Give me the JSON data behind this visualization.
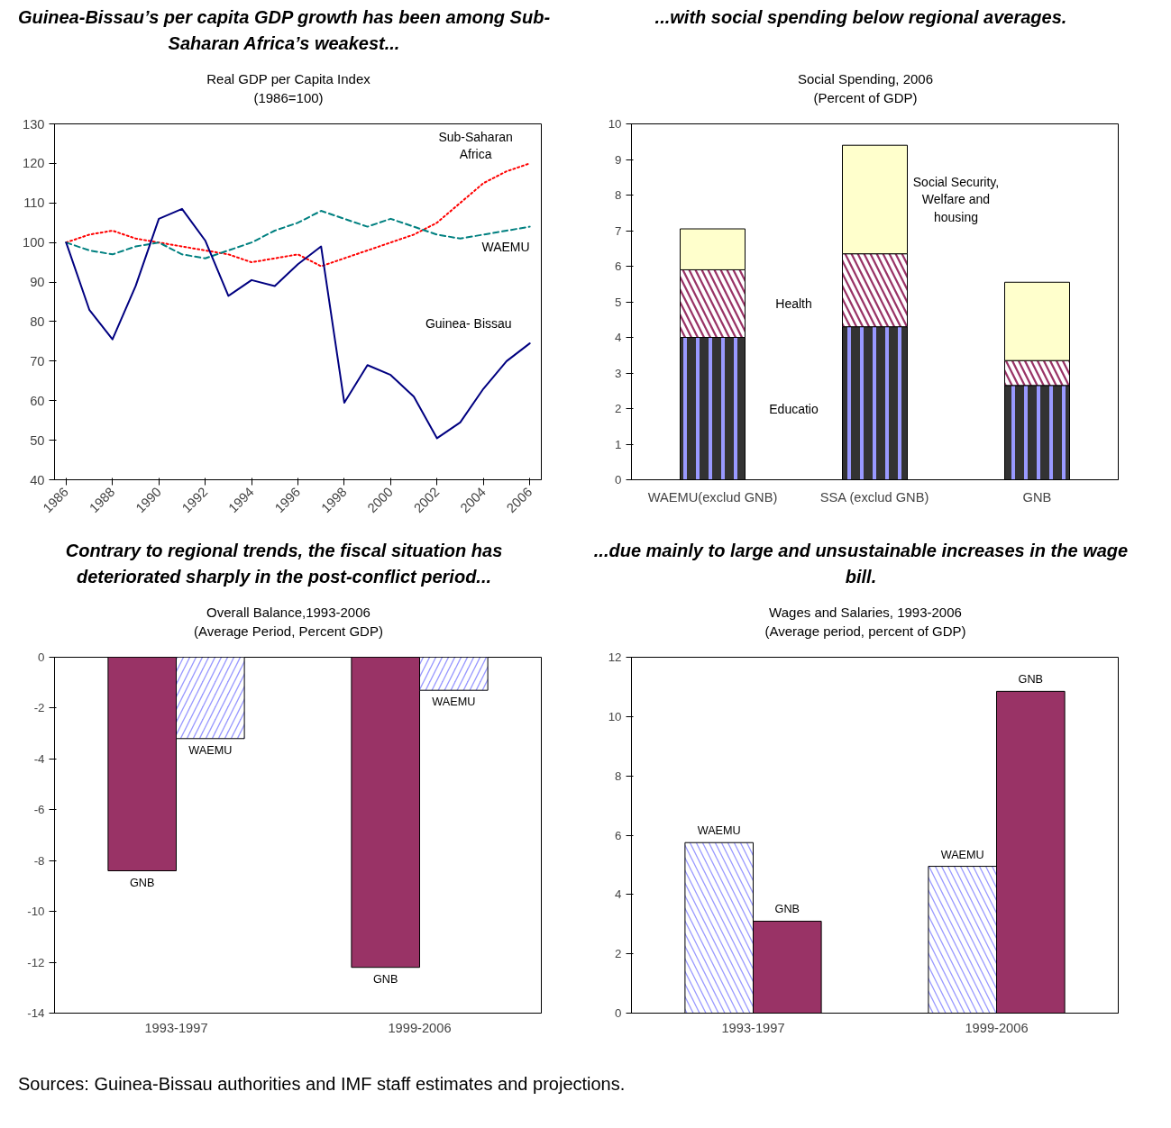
{
  "chart_data": [
    {
      "type": "line",
      "title": "Guinea-Bissau’s per capita GDP growth has been among Sub-Saharan Africa’s weakest...",
      "subtitle": "Real GDP per Capita Index (1986=100)",
      "x": [
        1986,
        1987,
        1988,
        1989,
        1990,
        1991,
        1992,
        1993,
        1994,
        1995,
        1996,
        1997,
        1998,
        1999,
        2000,
        2001,
        2002,
        2003,
        2004,
        2005,
        2006
      ],
      "series": [
        {
          "name": "Sub-Saharan Africa",
          "color": "#ff0000",
          "line_style": "dotted",
          "values": [
            100,
            102,
            103,
            101,
            100,
            99,
            98,
            97,
            95,
            96,
            97,
            94,
            96,
            98,
            100,
            102,
            105,
            110,
            115,
            118,
            120
          ]
        },
        {
          "name": "WAEMU",
          "color": "#008080",
          "line_style": "dashed",
          "values": [
            100,
            98,
            97,
            99,
            100,
            97,
            96,
            98,
            100,
            103,
            105,
            108,
            106,
            104,
            106,
            104,
            102,
            101,
            102,
            103,
            104
          ]
        },
        {
          "name": "Guinea- Bissau",
          "color": "#000080",
          "line_style": "solid",
          "values": [
            100,
            83,
            75.5,
            89,
            106,
            108.5,
            100.5,
            86.5,
            90.5,
            89,
            94.5,
            99,
            59.5,
            69,
            66.5,
            61,
            50.5,
            54.5,
            63,
            70,
            74.5
          ]
        }
      ],
      "xlim": [
        1985.5,
        2006.5
      ],
      "xticks": [
        1986,
        1988,
        1990,
        1992,
        1994,
        1996,
        1998,
        2000,
        2002,
        2004,
        2006
      ],
      "ylim": [
        40,
        130
      ],
      "yticks": [
        40,
        50,
        60,
        70,
        80,
        90,
        100,
        110,
        120,
        130
      ],
      "grid": false,
      "legend": false
    },
    {
      "type": "bar",
      "stacked": true,
      "title": "...with social spending below regional averages.",
      "subtitle": "Social Spending, 2006 (Percent of GDP)",
      "categories": [
        "WAEMU(exclud GNB)",
        "SSA (exclud GNB)",
        "GNB"
      ],
      "series": [
        {
          "name": "Educatio",
          "color": "#333333",
          "values": [
            4.0,
            4.3,
            2.65
          ]
        },
        {
          "name": "Health",
          "color": "#993366",
          "values": [
            1.9,
            2.05,
            0.7
          ]
        },
        {
          "name": "Social Security, Welfare and housing",
          "color": "#ffffcc",
          "values": [
            1.15,
            3.05,
            2.2
          ]
        }
      ],
      "ylim": [
        0,
        10
      ],
      "yticks": [
        0,
        1,
        2,
        3,
        4,
        5,
        6,
        7,
        8,
        9,
        10
      ],
      "grid": false,
      "legend": false
    },
    {
      "type": "bar",
      "title": "Contrary to regional trends, the fiscal situation has deteriorated sharply in the post-conflict period...",
      "subtitle": "Overall Balance,1993-2006 (Average Period, Percent GDP)",
      "categories": [
        "1993-1997",
        "1999-2006"
      ],
      "series": [
        {
          "name": "GNB",
          "color": "#993366",
          "values": [
            -8.4,
            -12.2
          ]
        },
        {
          "name": "WAEMU",
          "color": "#9999ff",
          "values": [
            -3.2,
            -1.3
          ]
        }
      ],
      "ylim": [
        -14,
        0
      ],
      "yticks": [
        -14,
        -12,
        -10,
        -8,
        -6,
        -4,
        -2,
        0
      ],
      "grid": false,
      "legend": false
    },
    {
      "type": "bar",
      "title": "...due mainly to large and unsustainable increases in the wage bill.",
      "subtitle": "Wages and Salaries, 1993-2006 (Average period, percent of GDP)",
      "categories": [
        "1993-1997",
        "1999-2006"
      ],
      "series": [
        {
          "name": "WAEMU",
          "color": "#9999ff",
          "values": [
            5.75,
            4.95
          ]
        },
        {
          "name": "GNB",
          "color": "#993366",
          "values": [
            3.1,
            10.85
          ]
        }
      ],
      "ylim": [
        0,
        12
      ],
      "yticks": [
        0,
        2,
        4,
        6,
        8,
        10,
        12
      ],
      "grid": false,
      "legend": false,
      "annotations": [
        "Sources: Guinea-Bissau authorities and IMF staff estimates and projections."
      ]
    }
  ]
}
